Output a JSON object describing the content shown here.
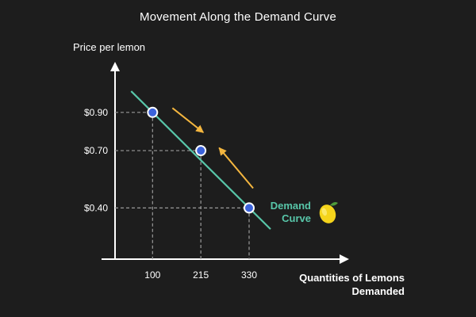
{
  "chart_data": {
    "type": "line",
    "title": "Movement Along the Demand Curve",
    "ylabel": "Price per lemon",
    "xlabel_lines": [
      "Quantities of Lemons",
      "Demanded"
    ],
    "curve_label_lines": [
      "Demand",
      "Curve"
    ],
    "x_ticks": [
      100,
      215,
      330
    ],
    "x_tick_labels": [
      "100",
      "215",
      "330"
    ],
    "y_ticks": [
      0.9,
      0.7,
      0.4
    ],
    "y_tick_labels": [
      "$0.90",
      "$0.70",
      "$0.40"
    ],
    "series": [
      {
        "points": [
          {
            "x": 100,
            "y": 0.9
          },
          {
            "x": 215,
            "y": 0.7
          },
          {
            "x": 330,
            "y": 0.4
          }
        ]
      }
    ],
    "arrows": [
      {
        "from": {
          "x": 100,
          "y": 0.9
        },
        "to": {
          "x": 215,
          "y": 0.7
        }
      },
      {
        "from": {
          "x": 330,
          "y": 0.4
        },
        "to": {
          "x": 215,
          "y": 0.7
        }
      }
    ],
    "colors": {
      "background": "#1d1d1d",
      "curve": "#58c6a9",
      "point_fill": "#3c63db",
      "point_stroke": "#ffffff",
      "arrow": "#f4b63f",
      "guide": "#9a9a9a",
      "axis": "#ffffff",
      "lemon": "#f5d41b"
    },
    "icons": [
      "lemon-icon"
    ]
  }
}
